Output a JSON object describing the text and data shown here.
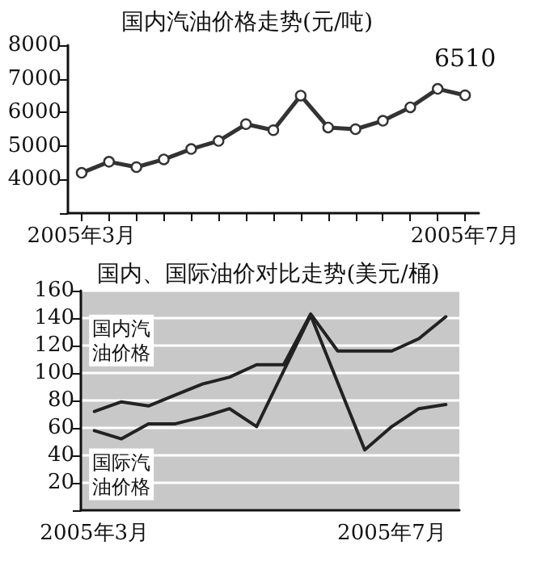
{
  "chart_data": [
    {
      "type": "line",
      "title": "国内汽油价格走势(元/吨)",
      "categories": [
        "2005年3月",
        null,
        null,
        null,
        null,
        null,
        null,
        null,
        null,
        null,
        null,
        null,
        null,
        null,
        "2005年7月"
      ],
      "series": [
        {
          "color": "#333333",
          "values": [
            4200,
            4530,
            4370,
            4600,
            4910,
            5150,
            5650,
            5470,
            6500,
            5550,
            5500,
            5750,
            6150,
            6700,
            6510
          ],
          "value_labels": [
            null,
            null,
            null,
            null,
            null,
            null,
            null,
            null,
            null,
            null,
            null,
            null,
            null,
            null,
            "6510"
          ]
        }
      ],
      "ylim": [
        3000,
        8000
      ],
      "yticks": [
        {
          "value": 3000,
          "label": null
        },
        4000,
        5000,
        6000,
        7000,
        8000
      ],
      "grid": false,
      "legend": false,
      "marker": "circle",
      "line_style": "solid"
    },
    {
      "type": "line",
      "title": "国内、国际油价对比走势(美元/桶)",
      "categories": [
        "2005年3月",
        null,
        null,
        null,
        null,
        null,
        null,
        null,
        null,
        null,
        null,
        "2005年7月",
        null,
        null
      ],
      "series": [
        {
          "name": "国内汽油价格",
          "color": "#222222",
          "values": [
            72,
            79,
            76,
            84,
            92,
            97,
            106,
            106,
            143,
            116,
            116,
            116,
            125,
            141
          ]
        },
        {
          "name": "国际汽油价格",
          "color": "#222222",
          "values": [
            58,
            52,
            63,
            63,
            68,
            74,
            61,
            null,
            142,
            null,
            44,
            61,
            74,
            77
          ]
        }
      ],
      "ylim": [
        0,
        160
      ],
      "yticks": [
        {
          "value": 0,
          "label": null
        },
        20,
        40,
        60,
        80,
        100,
        120,
        140,
        160
      ],
      "grid": "y",
      "legend": false,
      "marker": "none",
      "line_style": "solid"
    }
  ]
}
